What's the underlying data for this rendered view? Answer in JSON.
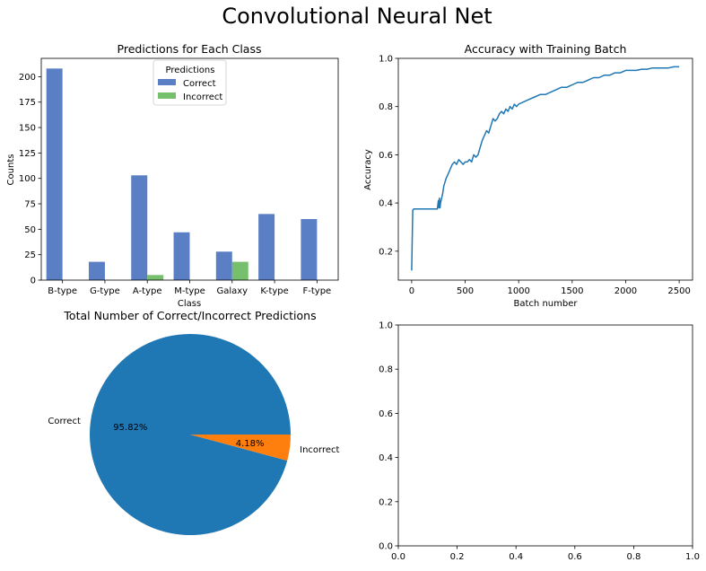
{
  "figure": {
    "title": "Convolutional Neural Net"
  },
  "chart_data": [
    {
      "type": "bar",
      "title": "Predictions for Each Class",
      "xlabel": "Class",
      "ylabel": "Counts",
      "categories": [
        "B-type",
        "G-type",
        "A-type",
        "M-type",
        "Galaxy",
        "K-type",
        "F-type"
      ],
      "series": [
        {
          "name": "Correct",
          "color": "#5b7fc4",
          "values": [
            208,
            18,
            103,
            47,
            28,
            65,
            60
          ]
        },
        {
          "name": "Incorrect",
          "color": "#76bf6d",
          "values": [
            0,
            0,
            5,
            0,
            18,
            0,
            0
          ]
        }
      ],
      "ylim": [
        0,
        218
      ],
      "yticks": [
        0,
        25,
        50,
        75,
        100,
        125,
        150,
        175,
        200
      ],
      "legend": {
        "title": "Predictions",
        "position": "upper-center"
      },
      "grid": false
    },
    {
      "type": "line",
      "title": "Accuracy with Training Batch",
      "xlabel": "Batch number",
      "ylabel": "Accuracy",
      "xlim": [
        -125,
        2625
      ],
      "ylim": [
        0.08,
        1.0
      ],
      "xticks": [
        0,
        500,
        1000,
        1500,
        2000,
        2500
      ],
      "yticks": [
        0.2,
        0.4,
        0.6,
        0.8,
        1.0
      ],
      "series": [
        {
          "color": "#1f77b4",
          "x": [
            0,
            10,
            20,
            50,
            100,
            150,
            200,
            240,
            250,
            255,
            260,
            265,
            270,
            280,
            290,
            300,
            320,
            340,
            360,
            380,
            400,
            420,
            440,
            460,
            480,
            500,
            520,
            540,
            560,
            580,
            600,
            620,
            640,
            660,
            680,
            700,
            720,
            740,
            760,
            780,
            800,
            820,
            840,
            860,
            880,
            900,
            920,
            940,
            960,
            980,
            1000,
            1050,
            1100,
            1150,
            1200,
            1250,
            1300,
            1350,
            1400,
            1450,
            1500,
            1550,
            1600,
            1650,
            1700,
            1750,
            1800,
            1850,
            1900,
            1950,
            2000,
            2050,
            2100,
            2150,
            2200,
            2250,
            2300,
            2350,
            2400,
            2450,
            2500
          ],
          "y": [
            0.12,
            0.37,
            0.375,
            0.375,
            0.375,
            0.375,
            0.375,
            0.375,
            0.41,
            0.38,
            0.42,
            0.38,
            0.4,
            0.42,
            0.44,
            0.47,
            0.5,
            0.52,
            0.54,
            0.56,
            0.57,
            0.56,
            0.58,
            0.57,
            0.56,
            0.57,
            0.57,
            0.58,
            0.57,
            0.6,
            0.59,
            0.6,
            0.63,
            0.66,
            0.68,
            0.7,
            0.69,
            0.72,
            0.75,
            0.74,
            0.75,
            0.77,
            0.78,
            0.77,
            0.79,
            0.78,
            0.8,
            0.79,
            0.81,
            0.8,
            0.81,
            0.82,
            0.83,
            0.84,
            0.85,
            0.85,
            0.86,
            0.87,
            0.88,
            0.88,
            0.89,
            0.9,
            0.9,
            0.91,
            0.92,
            0.92,
            0.93,
            0.93,
            0.94,
            0.94,
            0.95,
            0.95,
            0.95,
            0.955,
            0.955,
            0.96,
            0.96,
            0.96,
            0.96,
            0.965,
            0.965
          ]
        }
      ],
      "grid": false
    },
    {
      "type": "pie",
      "title": "Total Number of Correct/Incorrect Predictions",
      "slices": [
        {
          "label": "Correct",
          "value": 95.82,
          "pct_label": "95.82%",
          "color": "#1f77b4"
        },
        {
          "label": "Incorrect",
          "value": 4.18,
          "pct_label": "4.18%",
          "color": "#ff7f0e"
        }
      ]
    },
    {
      "type": "line",
      "title": "",
      "xlim": [
        0,
        1
      ],
      "ylim": [
        0,
        1
      ],
      "xticks": [
        0.0,
        0.2,
        0.4,
        0.6,
        0.8,
        1.0
      ],
      "yticks": [
        0.0,
        0.2,
        0.4,
        0.6,
        0.8,
        1.0
      ],
      "tick_format": "0.0",
      "series": []
    }
  ]
}
